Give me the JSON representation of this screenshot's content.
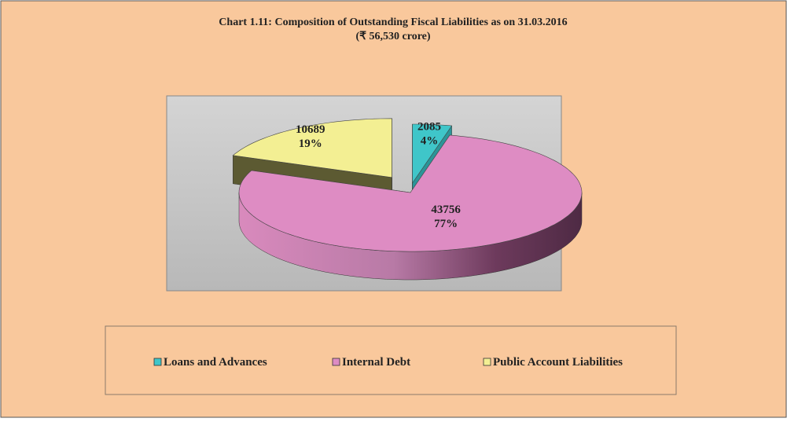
{
  "chart_data": {
    "type": "pie3d",
    "title": "Chart 1.11: Composition of Outstanding Fiscal Liabilities as on 31.03.2016",
    "subtitle": "(₹ 56,530 crore)",
    "categories": [
      "Loans and Advances",
      "Internal Debt",
      "Public Account Liabilities"
    ],
    "values": [
      2085,
      43756,
      10689
    ],
    "percent_labels": [
      "4%",
      "77%",
      "19%"
    ],
    "colors": [
      "#3fc6c9",
      "#de8cc3",
      "#f3ef93"
    ],
    "legend": "bottom"
  }
}
